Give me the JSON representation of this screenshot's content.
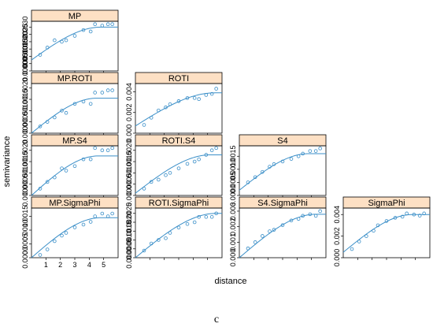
{
  "chart_data": {
    "type": "scatter",
    "layout": "trellis lower-triangular grid of variogram panels (points = sample semivariance, line = fitted model)",
    "xlabel": "distance",
    "ylabel": "semivariance",
    "caption": "c",
    "x_ticks": [
      1,
      2,
      3,
      4,
      5
    ],
    "xlim": [
      0,
      6
    ],
    "colors": {
      "strip_fill": "#fde0c4",
      "strip_border": "#000000",
      "points": "#3b8fc8",
      "fit_line": "#3b8fc8",
      "panel_border": "#000000"
    },
    "panels": [
      {
        "name": "MP",
        "row": 0,
        "col": 0,
        "ylim": [
          0,
          0.0034
        ],
        "y_ticks": [
          0.0,
          0.0005,
          0.001,
          0.0015,
          0.002,
          0.0025,
          0.003
        ],
        "y_tick_labels": [
          "0.0000",
          "0.0005",
          "0.0010",
          "0.0015",
          "0.0020",
          "0.0025",
          "0.0030"
        ],
        "points": {
          "x": [
            0.6,
            1.1,
            1.6,
            2.1,
            2.4,
            3.0,
            3.6,
            4.1,
            4.4,
            4.9,
            5.3,
            5.6
          ],
          "y": [
            0.0011,
            0.0016,
            0.0021,
            0.002,
            0.0021,
            0.0024,
            0.0028,
            0.0027,
            0.0032,
            0.0031,
            0.0032,
            0.0032
          ]
        },
        "fit": {
          "nugget": 0.00075,
          "sill": 0.003,
          "range": 4.8
        }
      },
      {
        "name": "MP.ROTI",
        "row": 1,
        "col": 0,
        "ylim": [
          0,
          0.0022
        ],
        "y_ticks": [
          0.0,
          0.0005,
          0.001,
          0.0015,
          0.002
        ],
        "y_tick_labels": [
          "0.0000",
          "0.0005",
          "0.0010",
          "0.0015",
          "0.0020"
        ],
        "points": {
          "x": [
            0.6,
            1.1,
            1.6,
            2.1,
            2.4,
            3.0,
            3.6,
            4.1,
            4.4,
            4.9,
            5.3,
            5.6
          ],
          "y": [
            0.0003,
            0.0005,
            0.0007,
            0.001,
            0.0009,
            0.0013,
            0.0014,
            0.0013,
            0.0018,
            0.0018,
            0.0019,
            0.0019
          ]
        },
        "fit": {
          "nugget": 0.0,
          "sill": 0.00155,
          "range": 4.5
        }
      },
      {
        "name": "ROTI",
        "row": 1,
        "col": 1,
        "ylim": [
          0,
          0.0048
        ],
        "y_ticks": [
          0.0,
          0.002,
          0.004
        ],
        "y_tick_labels": [
          "0.000",
          "0.002",
          "0.004"
        ],
        "points": {
          "x": [
            0.6,
            1.1,
            1.6,
            2.1,
            2.4,
            3.0,
            3.6,
            4.1,
            4.4,
            4.9,
            5.3,
            5.6
          ],
          "y": [
            0.0008,
            0.0015,
            0.0022,
            0.0025,
            0.0028,
            0.0031,
            0.0034,
            0.0034,
            0.0033,
            0.0037,
            0.0038,
            0.0043
          ]
        },
        "fit": {
          "nugget": 0.0007,
          "sill": 0.0039,
          "range": 5.5
        }
      },
      {
        "name": "MP.S4",
        "row": 2,
        "col": 0,
        "ylim": [
          0,
          0.0022
        ],
        "y_ticks": [
          0.0,
          0.0005,
          0.001,
          0.0015,
          0.002
        ],
        "y_tick_labels": [
          "0.0000",
          "0.0005",
          "0.0010",
          "0.0015",
          "0.0020"
        ],
        "points": {
          "x": [
            0.6,
            1.1,
            1.6,
            2.1,
            2.4,
            3.0,
            3.6,
            4.1,
            4.4,
            4.9,
            5.3,
            5.6
          ],
          "y": [
            0.0003,
            0.0006,
            0.0008,
            0.0012,
            0.0011,
            0.0013,
            0.0016,
            0.0016,
            0.0021,
            0.002,
            0.002,
            0.0021
          ]
        },
        "fit": {
          "nugget": 0.0,
          "sill": 0.00175,
          "range": 4.6
        }
      },
      {
        "name": "ROTI.S4",
        "row": 2,
        "col": 1,
        "ylim": [
          0,
          0.0022
        ],
        "y_ticks": [
          0.0,
          0.0005,
          0.001,
          0.0015,
          0.002
        ],
        "y_tick_labels": [
          "0.0000",
          "0.0005",
          "0.0010",
          "0.0015",
          "0.0020"
        ],
        "points": {
          "x": [
            0.6,
            1.1,
            1.6,
            2.1,
            2.4,
            3.0,
            3.6,
            4.1,
            4.4,
            4.9,
            5.3,
            5.6
          ],
          "y": [
            0.0003,
            0.0006,
            0.0007,
            0.0009,
            0.001,
            0.0012,
            0.0014,
            0.0015,
            0.0016,
            0.0018,
            0.002,
            0.0021
          ]
        },
        "fit": {
          "nugget": 0.0001,
          "sill": 0.0018,
          "range": 5.2
        }
      },
      {
        "name": "S4",
        "row": 2,
        "col": 2,
        "ylim": [
          0,
          0.0019
        ],
        "y_ticks": [
          0.0,
          0.0005,
          0.001,
          0.0015
        ],
        "y_tick_labels": [
          "0.0000",
          "0.0005",
          "0.0010",
          "0.0015"
        ],
        "points": {
          "x": [
            0.6,
            1.1,
            1.6,
            2.1,
            2.4,
            3.0,
            3.6,
            4.1,
            4.4,
            4.9,
            5.3,
            5.6
          ],
          "y": [
            0.0005,
            0.0007,
            0.0009,
            0.0011,
            0.0012,
            0.0013,
            0.0014,
            0.0015,
            0.0016,
            0.0017,
            0.0017,
            0.0018
          ]
        },
        "fit": {
          "nugget": 0.0002,
          "sill": 0.0016,
          "range": 4.8
        }
      },
      {
        "name": "MP.SigmaPhi",
        "row": 3,
        "col": 0,
        "ylim": [
          0,
          0.0018
        ],
        "y_ticks": [
          0.0,
          0.0005,
          0.001,
          0.0015
        ],
        "y_tick_labels": [
          "0.0000",
          "0.0005",
          "0.0010",
          "0.0015"
        ],
        "points": {
          "x": [
            0.6,
            1.1,
            1.6,
            2.1,
            2.4,
            3.0,
            3.6,
            4.1,
            4.4,
            4.9,
            5.3,
            5.6
          ],
          "y": [
            0.0001,
            0.0003,
            0.0006,
            0.0008,
            0.0009,
            0.0011,
            0.0012,
            0.0013,
            0.0015,
            0.0016,
            0.0015,
            0.0016
          ]
        },
        "fit": {
          "nugget": 0.0,
          "sill": 0.00145,
          "range": 4.8
        }
      },
      {
        "name": "ROTI.SigmaPhi",
        "row": 3,
        "col": 1,
        "ylim": [
          0,
          0.0028
        ],
        "y_ticks": [
          0.0,
          0.0005,
          0.001,
          0.0015,
          0.002,
          0.0025
        ],
        "y_tick_labels": [
          "0.0000",
          "0.0005",
          "0.0010",
          "0.0015",
          "0.0020",
          "0.0025"
        ],
        "points": {
          "x": [
            0.6,
            1.1,
            1.6,
            2.1,
            2.4,
            3.0,
            3.6,
            4.1,
            4.4,
            4.9,
            5.3,
            5.6
          ],
          "y": [
            0.0004,
            0.0008,
            0.001,
            0.0011,
            0.0014,
            0.0017,
            0.0019,
            0.002,
            0.0023,
            0.0023,
            0.0023,
            0.0025
          ]
        },
        "fit": {
          "nugget": 0.0,
          "sill": 0.0025,
          "range": 5.6
        }
      },
      {
        "name": "S4.SigmaPhi",
        "row": 3,
        "col": 2,
        "ylim": [
          0,
          0.0032
        ],
        "y_ticks": [
          0.0,
          0.001,
          0.002,
          0.003
        ],
        "y_tick_labels": [
          "0.000",
          "0.001",
          "0.002",
          "0.003"
        ],
        "points": {
          "x": [
            0.6,
            1.1,
            1.6,
            2.1,
            2.4,
            3.0,
            3.6,
            4.1,
            4.4,
            4.9,
            5.3,
            5.6
          ],
          "y": [
            0.0006,
            0.001,
            0.0014,
            0.0017,
            0.0018,
            0.0021,
            0.0024,
            0.0025,
            0.0027,
            0.0028,
            0.0027,
            0.003
          ]
        },
        "fit": {
          "nugget": 0.0,
          "sill": 0.0028,
          "range": 5.3
        }
      },
      {
        "name": "SigmaPhi",
        "row": 3,
        "col": 3,
        "ylim": [
          0,
          0.0046
        ],
        "y_ticks": [
          0.0,
          0.002,
          0.004
        ],
        "y_tick_labels": [
          "0.000",
          "0.002",
          "0.004"
        ],
        "points": {
          "x": [
            0.6,
            1.1,
            1.6,
            2.1,
            2.4,
            3.0,
            3.6,
            4.1,
            4.4,
            4.9,
            5.3,
            5.6
          ],
          "y": [
            0.0008,
            0.0015,
            0.002,
            0.0025,
            0.003,
            0.0034,
            0.0037,
            0.0038,
            0.0041,
            0.004,
            0.0039,
            0.0041
          ]
        },
        "fit": {
          "nugget": 0.0005,
          "sill": 0.004,
          "range": 4.8
        }
      }
    ]
  }
}
